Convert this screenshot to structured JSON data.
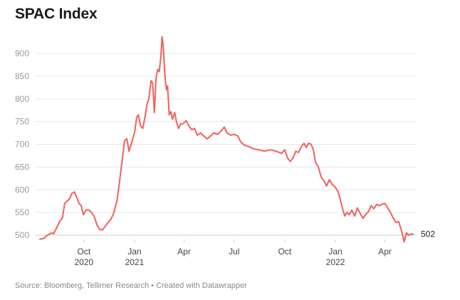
{
  "title": "SPAC Index",
  "source": "Source: Bloomberg, Tellimer Research • Created with Datawrapper",
  "colors": {
    "line": "#f2605a",
    "grid": "#e6e6e6",
    "axis_text": "#9a9a9a"
  },
  "chart_data": {
    "type": "line",
    "title": "SPAC Index",
    "xlabel": "",
    "ylabel": "",
    "ylim": [
      480,
      940
    ],
    "xlim": [
      "2020-07-13",
      "2022-05-22"
    ],
    "grid": true,
    "legend": "none",
    "yticks": [
      500,
      550,
      600,
      650,
      700,
      750,
      800,
      850,
      900
    ],
    "xticks": [
      {
        "date": "2020-10-01",
        "label": "Oct",
        "year": "2020"
      },
      {
        "date": "2021-01-01",
        "label": "Jan",
        "year": "2021"
      },
      {
        "date": "2021-04-01",
        "label": "Apr",
        "year": ""
      },
      {
        "date": "2021-07-01",
        "label": "Jul",
        "year": ""
      },
      {
        "date": "2021-10-01",
        "label": "Oct",
        "year": ""
      },
      {
        "date": "2022-01-01",
        "label": "Jan",
        "year": "2022"
      },
      {
        "date": "2022-04-01",
        "label": "Apr",
        "year": ""
      }
    ],
    "end_label": "502",
    "series": [
      {
        "values": [
          [
            "2020-07-13",
            491
          ],
          [
            "2020-07-20",
            493
          ],
          [
            "2020-07-27",
            500
          ],
          [
            "2020-08-03",
            505
          ],
          [
            "2020-08-07",
            503
          ],
          [
            "2020-08-12",
            515
          ],
          [
            "2020-08-18",
            530
          ],
          [
            "2020-08-23",
            538
          ],
          [
            "2020-08-27",
            570
          ],
          [
            "2020-08-31",
            575
          ],
          [
            "2020-09-05",
            580
          ],
          [
            "2020-09-09",
            592
          ],
          [
            "2020-09-14",
            595
          ],
          [
            "2020-09-18",
            583
          ],
          [
            "2020-09-22",
            570
          ],
          [
            "2020-09-26",
            565
          ],
          [
            "2020-09-30",
            545
          ],
          [
            "2020-10-05",
            555
          ],
          [
            "2020-10-10",
            555
          ],
          [
            "2020-10-15",
            550
          ],
          [
            "2020-10-20",
            540
          ],
          [
            "2020-10-25",
            522
          ],
          [
            "2020-10-30",
            512
          ],
          [
            "2020-11-04",
            512
          ],
          [
            "2020-11-09",
            520
          ],
          [
            "2020-11-14",
            528
          ],
          [
            "2020-11-19",
            535
          ],
          [
            "2020-11-24",
            548
          ],
          [
            "2020-11-30",
            575
          ],
          [
            "2020-12-04",
            610
          ],
          [
            "2020-12-09",
            660
          ],
          [
            "2020-12-14",
            708
          ],
          [
            "2020-12-18",
            712
          ],
          [
            "2020-12-22",
            685
          ],
          [
            "2020-12-27",
            705
          ],
          [
            "2021-01-01",
            725
          ],
          [
            "2021-01-05",
            760
          ],
          [
            "2021-01-08",
            765
          ],
          [
            "2021-01-12",
            740
          ],
          [
            "2021-01-16",
            735
          ],
          [
            "2021-01-20",
            760
          ],
          [
            "2021-01-24",
            790
          ],
          [
            "2021-01-27",
            800
          ],
          [
            "2021-01-31",
            840
          ],
          [
            "2021-02-03",
            835
          ],
          [
            "2021-02-06",
            770
          ],
          [
            "2021-02-09",
            845
          ],
          [
            "2021-02-12",
            865
          ],
          [
            "2021-02-15",
            860
          ],
          [
            "2021-02-18",
            895
          ],
          [
            "2021-02-20",
            937
          ],
          [
            "2021-02-22",
            918
          ],
          [
            "2021-02-24",
            875
          ],
          [
            "2021-02-26",
            840
          ],
          [
            "2021-02-28",
            820
          ],
          [
            "2021-03-02",
            828
          ],
          [
            "2021-03-05",
            765
          ],
          [
            "2021-03-08",
            772
          ],
          [
            "2021-03-11",
            755
          ],
          [
            "2021-03-15",
            770
          ],
          [
            "2021-03-18",
            750
          ],
          [
            "2021-03-22",
            735
          ],
          [
            "2021-03-26",
            745
          ],
          [
            "2021-03-30",
            745
          ],
          [
            "2021-04-05",
            752
          ],
          [
            "2021-04-10",
            740
          ],
          [
            "2021-04-15",
            732
          ],
          [
            "2021-04-20",
            735
          ],
          [
            "2021-04-25",
            720
          ],
          [
            "2021-05-01",
            725
          ],
          [
            "2021-05-07",
            718
          ],
          [
            "2021-05-13",
            712
          ],
          [
            "2021-05-19",
            718
          ],
          [
            "2021-05-25",
            725
          ],
          [
            "2021-06-01",
            722
          ],
          [
            "2021-06-08",
            730
          ],
          [
            "2021-06-13",
            738
          ],
          [
            "2021-06-18",
            725
          ],
          [
            "2021-06-25",
            720
          ],
          [
            "2021-07-01",
            722
          ],
          [
            "2021-07-08",
            718
          ],
          [
            "2021-07-13",
            705
          ],
          [
            "2021-07-20",
            698
          ],
          [
            "2021-07-28",
            695
          ],
          [
            "2021-08-05",
            690
          ],
          [
            "2021-08-15",
            688
          ],
          [
            "2021-08-25",
            685
          ],
          [
            "2021-09-05",
            688
          ],
          [
            "2021-09-15",
            685
          ],
          [
            "2021-09-25",
            680
          ],
          [
            "2021-10-01",
            688
          ],
          [
            "2021-10-06",
            670
          ],
          [
            "2021-10-11",
            662
          ],
          [
            "2021-10-16",
            670
          ],
          [
            "2021-10-21",
            685
          ],
          [
            "2021-10-26",
            682
          ],
          [
            "2021-10-31",
            695
          ],
          [
            "2021-11-05",
            702
          ],
          [
            "2021-11-09",
            693
          ],
          [
            "2021-11-13",
            702
          ],
          [
            "2021-11-18",
            700
          ],
          [
            "2021-11-22",
            688
          ],
          [
            "2021-11-26",
            660
          ],
          [
            "2021-12-01",
            650
          ],
          [
            "2021-12-06",
            628
          ],
          [
            "2021-12-11",
            620
          ],
          [
            "2021-12-16",
            608
          ],
          [
            "2021-12-21",
            622
          ],
          [
            "2021-12-26",
            612
          ],
          [
            "2022-01-01",
            605
          ],
          [
            "2022-01-06",
            595
          ],
          [
            "2022-01-10",
            578
          ],
          [
            "2022-01-14",
            558
          ],
          [
            "2022-01-18",
            542
          ],
          [
            "2022-01-22",
            550
          ],
          [
            "2022-01-26",
            545
          ],
          [
            "2022-01-31",
            555
          ],
          [
            "2022-02-05",
            542
          ],
          [
            "2022-02-10",
            560
          ],
          [
            "2022-02-15",
            548
          ],
          [
            "2022-02-20",
            537
          ],
          [
            "2022-02-25",
            545
          ],
          [
            "2022-03-02",
            552
          ],
          [
            "2022-03-07",
            565
          ],
          [
            "2022-03-12",
            558
          ],
          [
            "2022-03-17",
            568
          ],
          [
            "2022-03-22",
            565
          ],
          [
            "2022-03-27",
            568
          ],
          [
            "2022-04-01",
            570
          ],
          [
            "2022-04-06",
            560
          ],
          [
            "2022-04-11",
            550
          ],
          [
            "2022-04-16",
            538
          ],
          [
            "2022-04-21",
            528
          ],
          [
            "2022-04-26",
            530
          ],
          [
            "2022-05-01",
            510
          ],
          [
            "2022-05-06",
            485
          ],
          [
            "2022-05-10",
            505
          ],
          [
            "2022-05-14",
            500
          ],
          [
            "2022-05-19",
            503
          ],
          [
            "2022-05-22",
            502
          ]
        ]
      }
    ]
  }
}
